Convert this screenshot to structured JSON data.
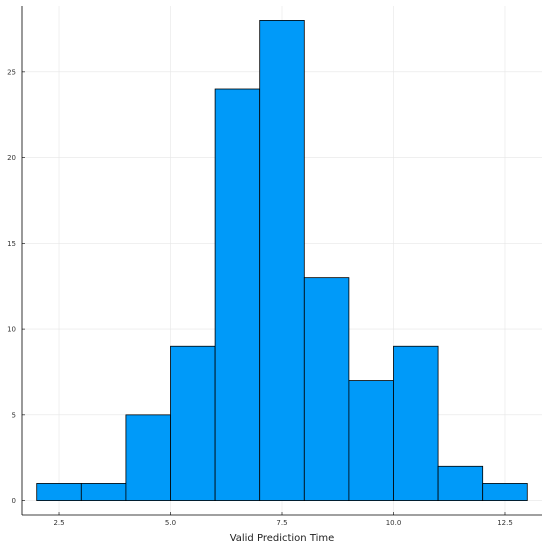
{
  "chart_data": {
    "type": "bar",
    "title": "",
    "xlabel": "Valid Prediction Time",
    "ylabel": "",
    "bin_edges": [
      2,
      3,
      4,
      5,
      6,
      7,
      8,
      9,
      10,
      11,
      12,
      13
    ],
    "values": [
      1,
      1,
      5,
      9,
      24,
      28,
      13,
      7,
      9,
      2,
      1
    ],
    "xlim": [
      1.67,
      13.33
    ],
    "ylim": [
      -0.84,
      28.84
    ],
    "x_ticks": [
      2.5,
      5.0,
      7.5,
      10.0,
      12.5
    ],
    "x_tick_labels": [
      "2.5",
      "5.0",
      "7.5",
      "10.0",
      "12.5"
    ],
    "y_ticks": [
      0,
      5,
      10,
      15,
      20,
      25
    ],
    "y_tick_labels": [
      "0",
      "5",
      "10",
      "15",
      "20",
      "25"
    ],
    "grid": true,
    "legend": false,
    "bar_color": "#009af9",
    "bar_edge_color": "#000000"
  }
}
